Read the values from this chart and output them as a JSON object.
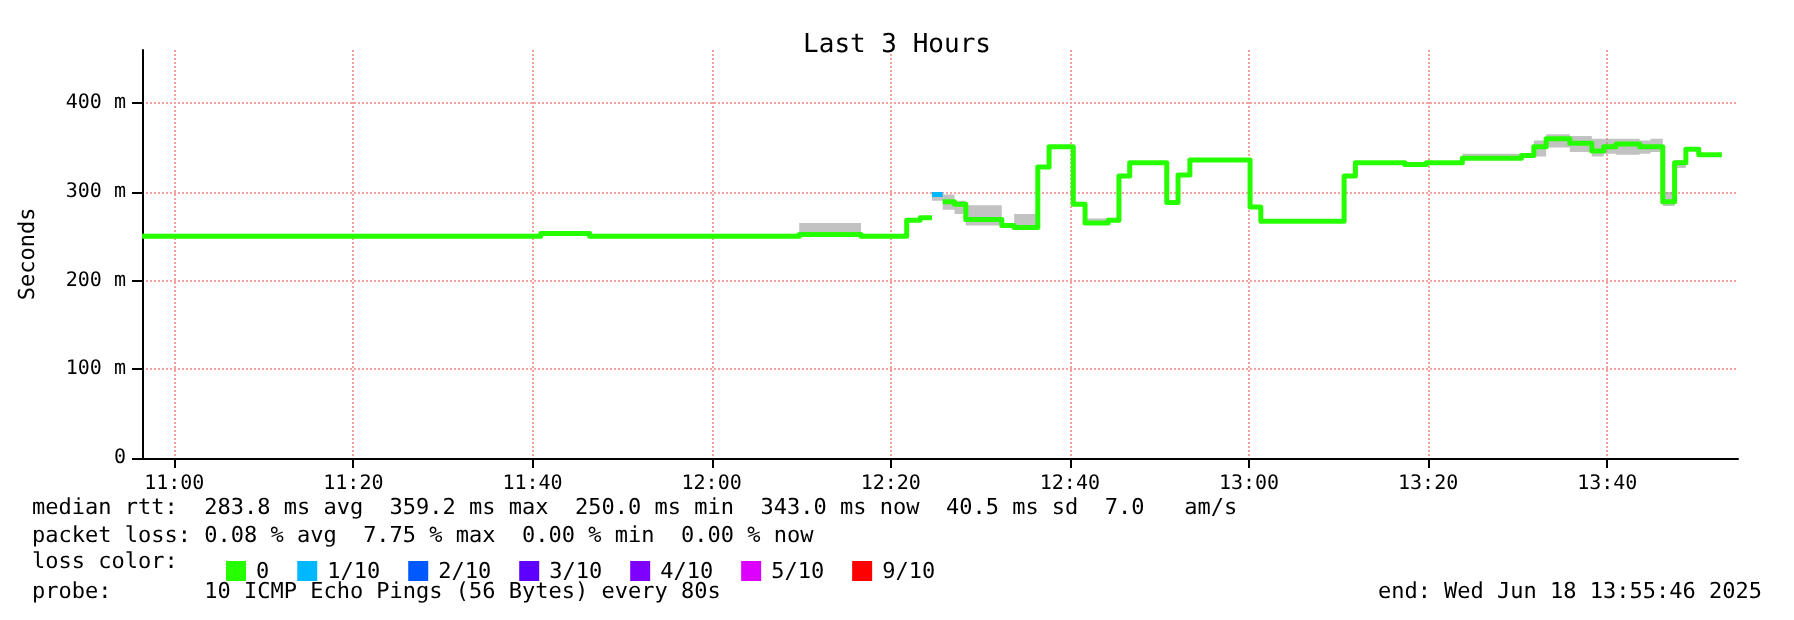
{
  "chart_data": {
    "type": "step",
    "title": "Last 3 Hours",
    "ylabel": "Seconds",
    "legend_title": "loss color:",
    "annotations": [
      "median rtt:  283.8 ms avg  359.2 ms max  250.0 ms min  343.0 ms now  40.5 ms sd  7.0   am/s",
      "packet loss: 0.08 % avg  7.75 % max  0.00 % min  0.00 % now",
      "probe:       10 ICMP Echo Pings (56 Bytes) every 80s",
      "end: Wed Jun 18 13:55:46 2025"
    ],
    "x": [
      10.94,
      11.682,
      11.773,
      12.163,
      12.278,
      12.363,
      12.388,
      12.41,
      12.43,
      12.452,
      12.473,
      12.54,
      12.563,
      12.607,
      12.628,
      12.673,
      12.695,
      12.738,
      12.758,
      12.778,
      12.847,
      12.868,
      12.89,
      13.002,
      13.022,
      13.177,
      13.198,
      13.29,
      13.33,
      13.397,
      13.507,
      13.53,
      13.553,
      13.597,
      13.638,
      13.66,
      13.683,
      13.727,
      13.747,
      13.77,
      13.792,
      13.813,
      13.837,
      13.88
    ],
    "series": [
      {
        "name": "0",
        "color": "#26ff00",
        "values": [
          250,
          253,
          250,
          252,
          250,
          268,
          271,
          null,
          289,
          286,
          269,
          262,
          260,
          328,
          351,
          286,
          265,
          268,
          318,
          333,
          288,
          319,
          336,
          283,
          267,
          318,
          333,
          331,
          333,
          338,
          341,
          351,
          360,
          355,
          346,
          351,
          354,
          351,
          351,
          289,
          333,
          348,
          342,
          342
        ],
        "lower": [
          250,
          253,
          250,
          250,
          250,
          268,
          271,
          290,
          280,
          275,
          262,
          260,
          258,
          328,
          351,
          286,
          263,
          268,
          318,
          333,
          288,
          319,
          336,
          283,
          267,
          318,
          333,
          331,
          333,
          338,
          341,
          340,
          350,
          345,
          340,
          343,
          342,
          343,
          345,
          284,
          327,
          348,
          342,
          342
        ],
        "upper": [
          250,
          253,
          250,
          265,
          250,
          268,
          271,
          297,
          297,
          290,
          285,
          265,
          275,
          328,
          351,
          286,
          270,
          268,
          318,
          333,
          288,
          319,
          336,
          283,
          267,
          318,
          333,
          331,
          333,
          343,
          341,
          358,
          365,
          363,
          360,
          360,
          360,
          358,
          360,
          300,
          336,
          348,
          342,
          342
        ]
      },
      {
        "name": "1/10",
        "color": "#00b8ff",
        "x": [
          12.41,
          12.43
        ],
        "values": [
          297,
          297
        ]
      },
      {
        "name": "2/10",
        "color": "#0059ff",
        "values": [
          null,
          null,
          null,
          null,
          null,
          null,
          null,
          null,
          null,
          null,
          null,
          null,
          null,
          null,
          null,
          null,
          null,
          null,
          null,
          null,
          null,
          null,
          null,
          null,
          null,
          null,
          null,
          null,
          null,
          null,
          null,
          null,
          null,
          null,
          null,
          null,
          null,
          null,
          null,
          null,
          null,
          null,
          null,
          null
        ]
      },
      {
        "name": "3/10",
        "color": "#5e00ff",
        "values": [
          null,
          null,
          null,
          null,
          null,
          null,
          null,
          null,
          null,
          null,
          null,
          null,
          null,
          null,
          null,
          null,
          null,
          null,
          null,
          null,
          null,
          null,
          null,
          null,
          null,
          null,
          null,
          null,
          null,
          null,
          null,
          null,
          null,
          null,
          null,
          null,
          null,
          null,
          null,
          null,
          null,
          null,
          null,
          null
        ]
      },
      {
        "name": "4/10",
        "color": "#7e00ff",
        "values": [
          null,
          null,
          null,
          null,
          null,
          null,
          null,
          null,
          null,
          null,
          null,
          null,
          null,
          null,
          null,
          null,
          null,
          null,
          null,
          null,
          null,
          null,
          null,
          null,
          null,
          null,
          null,
          null,
          null,
          null,
          null,
          null,
          null,
          null,
          null,
          null,
          null,
          null,
          null,
          null,
          null,
          null,
          null,
          null
        ]
      },
      {
        "name": "5/10",
        "color": "#dd00ff",
        "values": [
          null,
          null,
          null,
          null,
          null,
          null,
          null,
          null,
          null,
          null,
          null,
          null,
          null,
          null,
          null,
          null,
          null,
          null,
          null,
          null,
          null,
          null,
          null,
          null,
          null,
          null,
          null,
          null,
          null,
          null,
          null,
          null,
          null,
          null,
          null,
          null,
          null,
          null,
          null,
          null,
          null,
          null,
          null,
          null
        ]
      },
      {
        "name": "9/10",
        "color": "#ff0000",
        "values": [
          null,
          null,
          null,
          null,
          null,
          null,
          null,
          null,
          null,
          null,
          null,
          null,
          null,
          null,
          null,
          null,
          null,
          null,
          null,
          null,
          null,
          null,
          null,
          null,
          null,
          null,
          null,
          null,
          null,
          null,
          null,
          null,
          null,
          null,
          null,
          null,
          null,
          null,
          null,
          null,
          null,
          null,
          null,
          null
        ]
      }
    ],
    "xlim": [
      10.94,
      13.91
    ],
    "xticks": [
      {
        "value": 11,
        "label": "11:00"
      },
      {
        "value": 11.3333,
        "label": "11:20"
      },
      {
        "value": 11.6667,
        "label": "11:40"
      },
      {
        "value": 12,
        "label": "12:00"
      },
      {
        "value": 12.3333,
        "label": "12:20"
      },
      {
        "value": 12.6667,
        "label": "12:40"
      },
      {
        "value": 13,
        "label": "13:00"
      },
      {
        "value": 13.3333,
        "label": "13:20"
      },
      {
        "value": 13.6667,
        "label": "13:40"
      }
    ],
    "ylim": [
      0,
      460
    ],
    "yticks": [
      0,
      {
        "value": 100,
        "label": "100 m"
      },
      {
        "value": 200,
        "label": "200 m"
      },
      {
        "value": 300,
        "label": "300 m"
      },
      {
        "value": 400,
        "label": "400 m"
      }
    ],
    "grid": true,
    "legend": "bottom",
    "marker": "none",
    "line_style": "solid"
  }
}
